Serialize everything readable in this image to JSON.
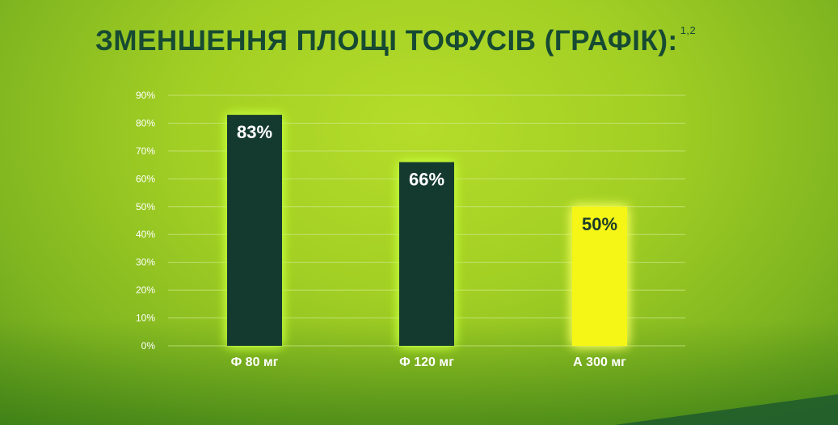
{
  "title": "ЗМЕНШЕННЯ ПЛОЩІ ТОФУСІВ (ГРАФІК):",
  "title_sup": "1,2",
  "colors": {
    "bar_dark": "#143a30",
    "bar_highlight": "#f5f516",
    "label_on_dark": "#ffffff",
    "label_on_highlight": "#1a3a2a",
    "grid": "#cfe88a"
  },
  "chart_data": {
    "type": "bar",
    "categories": [
      "Ф 80 мг",
      "Ф 120 мг",
      "А 300 мг"
    ],
    "values": [
      83,
      66,
      50
    ],
    "data_labels": [
      "83%",
      "66%",
      "50%"
    ],
    "highlight_index": 2,
    "ylim": [
      0,
      90
    ],
    "yticks": [
      0,
      10,
      20,
      30,
      40,
      50,
      60,
      70,
      80,
      90
    ],
    "ytick_labels": [
      "0%",
      "10%",
      "20%",
      "30%",
      "40%",
      "50%",
      "60%",
      "70%",
      "80%",
      "90%"
    ],
    "grid": true,
    "legend": "none"
  }
}
